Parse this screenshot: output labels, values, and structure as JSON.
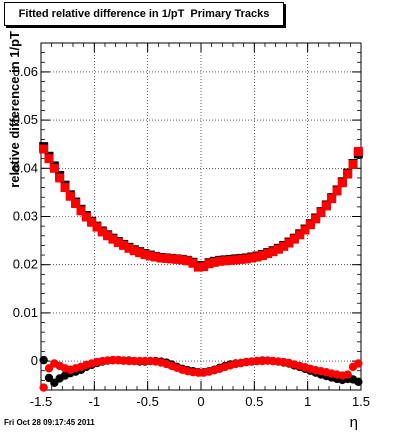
{
  "chart_data": {
    "type": "scatter",
    "title": "Fitted relative difference in 1/pT  Primary Tracks",
    "xlabel": "η",
    "ylabel": "relative difference in 1/pT",
    "xlim": [
      -1.5,
      1.5
    ],
    "ylim": [
      -0.006,
      0.066
    ],
    "xticks": [
      "-1.5",
      "-1",
      "-0.5",
      "0",
      "0.5",
      "1",
      "1.5"
    ],
    "yticks": [
      "0",
      "0.01",
      "0.02",
      "0.03",
      "0.04",
      "0.05",
      "0.06"
    ],
    "grid": true,
    "series": [
      {
        "marker": "square",
        "color": "#000000",
        "x": [
          -1.475,
          -1.425,
          -1.375,
          -1.325,
          -1.275,
          -1.225,
          -1.175,
          -1.125,
          -1.075,
          -1.025,
          -0.975,
          -0.925,
          -0.875,
          -0.825,
          -0.775,
          -0.725,
          -0.675,
          -0.625,
          -0.575,
          -0.525,
          -0.475,
          -0.425,
          -0.375,
          -0.325,
          -0.275,
          -0.225,
          -0.175,
          -0.125,
          -0.075,
          -0.025,
          0.025,
          0.075,
          0.125,
          0.175,
          0.225,
          0.275,
          0.325,
          0.375,
          0.425,
          0.475,
          0.525,
          0.575,
          0.625,
          0.675,
          0.725,
          0.775,
          0.825,
          0.875,
          0.925,
          0.975,
          1.025,
          1.075,
          1.125,
          1.175,
          1.225,
          1.275,
          1.325,
          1.375,
          1.425,
          1.475
        ],
        "y": [
          0.0445,
          0.0425,
          0.0405,
          0.0385,
          0.0365,
          0.0345,
          0.033,
          0.0315,
          0.0302,
          0.029,
          0.028,
          0.027,
          0.0262,
          0.0255,
          0.0248,
          0.0242,
          0.0236,
          0.0231,
          0.0227,
          0.0223,
          0.022,
          0.0217,
          0.0215,
          0.0214,
          0.0213,
          0.0212,
          0.0211,
          0.0209,
          0.0205,
          0.0198,
          0.0198,
          0.0204,
          0.0207,
          0.0209,
          0.021,
          0.0211,
          0.0212,
          0.0213,
          0.0214,
          0.0216,
          0.0218,
          0.0221,
          0.0225,
          0.0229,
          0.0234,
          0.024,
          0.0247,
          0.0255,
          0.0264,
          0.0274,
          0.0285,
          0.0297,
          0.031,
          0.0324,
          0.0339,
          0.0355,
          0.0372,
          0.039,
          0.041,
          0.043
        ]
      },
      {
        "marker": "square",
        "color": "#ff0000",
        "x": [
          -1.475,
          -1.425,
          -1.375,
          -1.325,
          -1.275,
          -1.225,
          -1.175,
          -1.125,
          -1.075,
          -1.025,
          -0.975,
          -0.925,
          -0.875,
          -0.825,
          -0.775,
          -0.725,
          -0.675,
          -0.625,
          -0.575,
          -0.525,
          -0.475,
          -0.425,
          -0.375,
          -0.325,
          -0.275,
          -0.225,
          -0.175,
          -0.125,
          -0.075,
          -0.025,
          0.025,
          0.075,
          0.125,
          0.175,
          0.225,
          0.275,
          0.325,
          0.375,
          0.425,
          0.475,
          0.525,
          0.575,
          0.625,
          0.675,
          0.725,
          0.775,
          0.825,
          0.875,
          0.925,
          0.975,
          1.025,
          1.075,
          1.125,
          1.175,
          1.225,
          1.275,
          1.325,
          1.375,
          1.425,
          1.475
        ],
        "y": [
          0.044,
          0.042,
          0.04,
          0.038,
          0.036,
          0.0342,
          0.0327,
          0.0312,
          0.0299,
          0.0288,
          0.0278,
          0.0268,
          0.026,
          0.0253,
          0.0246,
          0.024,
          0.0234,
          0.0229,
          0.0225,
          0.0221,
          0.0218,
          0.0216,
          0.0214,
          0.0213,
          0.0212,
          0.0211,
          0.021,
          0.0208,
          0.0203,
          0.0195,
          0.0196,
          0.0202,
          0.0205,
          0.0207,
          0.0208,
          0.0209,
          0.021,
          0.0211,
          0.0212,
          0.0214,
          0.0216,
          0.0219,
          0.0223,
          0.0227,
          0.0232,
          0.0238,
          0.0245,
          0.0253,
          0.0262,
          0.0272,
          0.0283,
          0.0295,
          0.0308,
          0.0322,
          0.0337,
          0.0353,
          0.037,
          0.0388,
          0.0408,
          0.0435
        ]
      },
      {
        "marker": "circle",
        "color": "#000000",
        "x": [
          -1.475,
          -1.425,
          -1.375,
          -1.325,
          -1.275,
          -1.225,
          -1.175,
          -1.125,
          -1.075,
          -1.025,
          -0.975,
          -0.925,
          -0.875,
          -0.825,
          -0.775,
          -0.725,
          -0.675,
          -0.625,
          -0.575,
          -0.525,
          -0.475,
          -0.425,
          -0.375,
          -0.325,
          -0.275,
          -0.225,
          -0.175,
          -0.125,
          -0.075,
          -0.025,
          0.025,
          0.075,
          0.125,
          0.175,
          0.225,
          0.275,
          0.325,
          0.375,
          0.425,
          0.475,
          0.525,
          0.575,
          0.625,
          0.675,
          0.725,
          0.775,
          0.825,
          0.875,
          0.925,
          0.975,
          1.025,
          1.075,
          1.125,
          1.175,
          1.225,
          1.275,
          1.325,
          1.375,
          1.425,
          1.475
        ],
        "y": [
          0.0002,
          -0.0035,
          -0.0045,
          -0.0036,
          -0.003,
          -0.0025,
          -0.0022,
          -0.0018,
          -0.0012,
          -0.0008,
          -0.0004,
          -0.0001,
          0.0001,
          0.0002,
          0.0002,
          0.0001,
          0.0001,
          0.0,
          -0.0001,
          -0.0001,
          0.0,
          0.0,
          -0.0001,
          -0.0003,
          -0.0007,
          -0.0012,
          -0.0016,
          -0.0019,
          -0.0021,
          -0.0023,
          -0.0023,
          -0.0021,
          -0.0018,
          -0.0014,
          -0.001,
          -0.0007,
          -0.0005,
          -0.0004,
          -0.0002,
          -0.0001,
          0.0,
          0.0001,
          0.0001,
          0.0,
          -0.0001,
          -0.0003,
          -0.0005,
          -0.0009,
          -0.0012,
          -0.0016,
          -0.002,
          -0.0024,
          -0.0028,
          -0.0031,
          -0.0034,
          -0.0037,
          -0.0039,
          -0.0037,
          -0.0038,
          -0.0043
        ]
      },
      {
        "marker": "circle",
        "color": "#ff0000",
        "x": [
          -1.475,
          -1.425,
          -1.375,
          -1.325,
          -1.275,
          -1.225,
          -1.175,
          -1.125,
          -1.075,
          -1.025,
          -0.975,
          -0.925,
          -0.875,
          -0.825,
          -0.775,
          -0.725,
          -0.675,
          -0.625,
          -0.575,
          -0.525,
          -0.475,
          -0.425,
          -0.375,
          -0.325,
          -0.275,
          -0.225,
          -0.175,
          -0.125,
          -0.075,
          -0.025,
          0.025,
          0.075,
          0.125,
          0.175,
          0.225,
          0.275,
          0.325,
          0.375,
          0.425,
          0.475,
          0.525,
          0.575,
          0.625,
          0.675,
          0.725,
          0.775,
          0.825,
          0.875,
          0.925,
          0.975,
          1.025,
          1.075,
          1.125,
          1.175,
          1.225,
          1.275,
          1.325,
          1.375,
          1.425,
          1.475
        ],
        "y": [
          -0.0055,
          -0.0015,
          -0.0005,
          -0.001,
          -0.0015,
          -0.0018,
          -0.0015,
          -0.0012,
          -0.0008,
          -0.0005,
          -0.0002,
          0.0,
          0.0001,
          0.0002,
          0.0002,
          0.0001,
          0.0,
          0.0,
          0.0,
          0.0,
          0.0,
          -0.0001,
          -0.0003,
          -0.0006,
          -0.001,
          -0.0014,
          -0.0018,
          -0.0021,
          -0.0023,
          -0.0024,
          -0.0024,
          -0.0022,
          -0.0019,
          -0.0016,
          -0.0012,
          -0.0009,
          -0.0006,
          -0.0004,
          -0.0002,
          -0.0001,
          0.0,
          0.0,
          0.0001,
          0.0,
          -0.0001,
          -0.0002,
          -0.0004,
          -0.0007,
          -0.001,
          -0.0013,
          -0.0016,
          -0.0019,
          -0.0021,
          -0.0023,
          -0.0026,
          -0.0028,
          -0.003,
          -0.0028,
          -0.0012,
          -0.0005
        ]
      }
    ]
  },
  "footer": {
    "timestamp": "Fri Oct 28 09:17:45 2011"
  }
}
